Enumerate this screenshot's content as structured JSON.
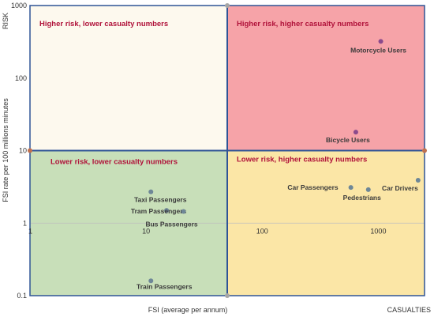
{
  "chart_data": {
    "type": "scatter",
    "x_scale": "log",
    "y_scale": "log",
    "xlim": [
      1,
      2500
    ],
    "ylim": [
      0.1,
      1000
    ],
    "x_ticks": [
      {
        "value": 1,
        "label": "1"
      },
      {
        "value": 10,
        "label": "10"
      },
      {
        "value": 100,
        "label": "100"
      },
      {
        "value": 1000,
        "label": "1000"
      }
    ],
    "y_ticks": [
      {
        "value": 1000,
        "label": "1000"
      },
      {
        "value": 100,
        "label": "100"
      },
      {
        "value": 10,
        "label": "10"
      },
      {
        "value": 1,
        "label": "1"
      },
      {
        "value": 0.1,
        "label": "0.1"
      }
    ],
    "divider_x": 50,
    "divider_y": 10,
    "risk_label": "RISK",
    "casualties_label": "CASUALTIES",
    "xlabel": "FSI (average per annum)",
    "ylabel": "FSI rate per 100 millions  minutes",
    "quadrants": [
      {
        "id": "top-left",
        "title": "Higher risk, lower casualty numbers",
        "fill": "#fdf9ee"
      },
      {
        "id": "top-right",
        "title": "Higher risk, higher casualty numbers",
        "fill": "#f6a3a8"
      },
      {
        "id": "bottom-left",
        "title": "Lower risk, lower casualty numbers",
        "fill": "#c8dfb9"
      },
      {
        "id": "bottom-right",
        "title": "Lower risk, higher casualty numbers",
        "fill": "#fbe6a6"
      }
    ],
    "points": [
      {
        "label": "Motorcycle Users",
        "x": 1050,
        "y": 320,
        "color": "#8b4a8c",
        "anchor": "middle",
        "dx": -3,
        "dy": 14
      },
      {
        "label": "Bicycle Users",
        "x": 640,
        "y": 18,
        "color": "#8b4a8c",
        "anchor": "middle",
        "dx": -10,
        "dy": 13
      },
      {
        "label": "Car Drivers",
        "x": 2200,
        "y": 3.9,
        "color": "#6e8797",
        "anchor": "end",
        "dx": 0,
        "dy": 13
      },
      {
        "label": "Car Passengers",
        "x": 580,
        "y": 3.1,
        "color": "#6e8797",
        "anchor": "end",
        "dx": -16,
        "dy": 3
      },
      {
        "label": "Pedestrians",
        "x": 820,
        "y": 2.9,
        "color": "#6e8797",
        "anchor": "middle",
        "dx": -8,
        "dy": 13
      },
      {
        "label": "Taxi Passengers",
        "x": 11,
        "y": 2.7,
        "color": "#6e8797",
        "anchor": "middle",
        "dx": 12,
        "dy": 13
      },
      {
        "label": "Tram Passengers",
        "x": 15,
        "y": 1.5,
        "color": "#6e8797",
        "anchor": "middle",
        "dx": -10,
        "dy": 4
      },
      {
        "label": "Bus Passengers",
        "x": 21,
        "y": 1.45,
        "color": "#6e8797",
        "anchor": "middle",
        "dx": -15,
        "dy": 19
      },
      {
        "label": "Train Passengers",
        "x": 11,
        "y": 0.16,
        "color": "#6e8797",
        "anchor": "middle",
        "dx": 17,
        "dy": 10
      }
    ]
  }
}
